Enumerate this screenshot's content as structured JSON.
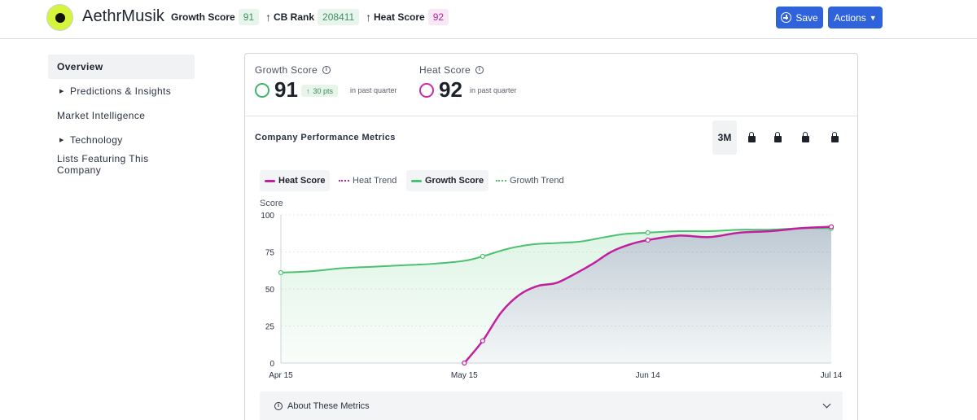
{
  "header": {
    "brand": "AethrMusik",
    "stats": [
      {
        "label": "Growth Score",
        "value": "91",
        "arrow": "↑"
      },
      {
        "label": "CB Rank",
        "value": "208411",
        "arrow": "↑"
      },
      {
        "label": "Heat Score",
        "value": "92"
      }
    ],
    "save_label": "Save",
    "actions_label": "Actions"
  },
  "sidebar": {
    "items": [
      {
        "label": "Overview",
        "active": true
      },
      {
        "label": "Predictions & Insights",
        "expandable": true
      },
      {
        "label": "Market Intelligence"
      },
      {
        "label": "Technology",
        "expandable": true
      },
      {
        "label": "Lists Featuring This Company"
      }
    ]
  },
  "scores": {
    "growth": {
      "title": "Growth Score",
      "value": "91",
      "change": "30 pts",
      "period": "in past quarter"
    },
    "heat": {
      "title": "Heat Score",
      "value": "92",
      "period": "in past quarter"
    }
  },
  "metrics": {
    "title": "Company Performance Metrics",
    "range_label": "3M",
    "about_label": "About These Metrics"
  },
  "colors": {
    "heat": "#c21f9e",
    "growth": "#4ac26f",
    "accent": "#2f63dc"
  },
  "chart_data": {
    "type": "line",
    "ylabel": "Score",
    "ylim": [
      0,
      100
    ],
    "yticks": [
      "0",
      "25",
      "50",
      "75",
      "100"
    ],
    "xticks": [
      "Apr 15",
      "May 15",
      "Jun 14",
      "Jul 14"
    ],
    "legend": [
      "Heat Score",
      "Heat Trend",
      "Growth Score",
      "Growth Trend"
    ],
    "series": [
      {
        "name": "Growth Score",
        "x": [
          "Apr 15",
          "Apr 20",
          "Apr 25",
          "Apr 30",
          "May 5",
          "May 10",
          "May 15",
          "May 18",
          "May 22",
          "May 26",
          "May 30",
          "Jun 3",
          "Jun 7",
          "Jun 10",
          "Jun 14",
          "Jun 19",
          "Jun 24",
          "Jun 29",
          "Jul 4",
          "Jul 9",
          "Jul 14"
        ],
        "values": [
          61,
          62,
          64,
          65,
          66,
          67,
          69,
          72,
          77,
          80,
          81,
          82,
          85,
          87,
          88,
          89,
          89,
          90,
          90,
          91,
          91
        ]
      },
      {
        "name": "Heat Score",
        "x": [
          "May 15",
          "May 18",
          "May 21",
          "May 24",
          "May 27",
          "May 30",
          "Jun 2",
          "Jun 5",
          "Jun 8",
          "Jun 11",
          "Jun 14",
          "Jun 19",
          "Jun 24",
          "Jun 29",
          "Jul 4",
          "Jul 9",
          "Jul 14"
        ],
        "values": [
          0,
          15,
          34,
          46,
          52,
          54,
          60,
          67,
          75,
          80,
          83,
          86,
          85,
          88,
          89,
          91,
          92
        ]
      }
    ],
    "markers": {
      "Growth Score": [
        "Apr 15",
        "May 18",
        "Jun 14",
        "Jul 14"
      ],
      "Heat Score": [
        "May 15",
        "May 18",
        "Jun 14",
        "Jul 14"
      ]
    }
  }
}
